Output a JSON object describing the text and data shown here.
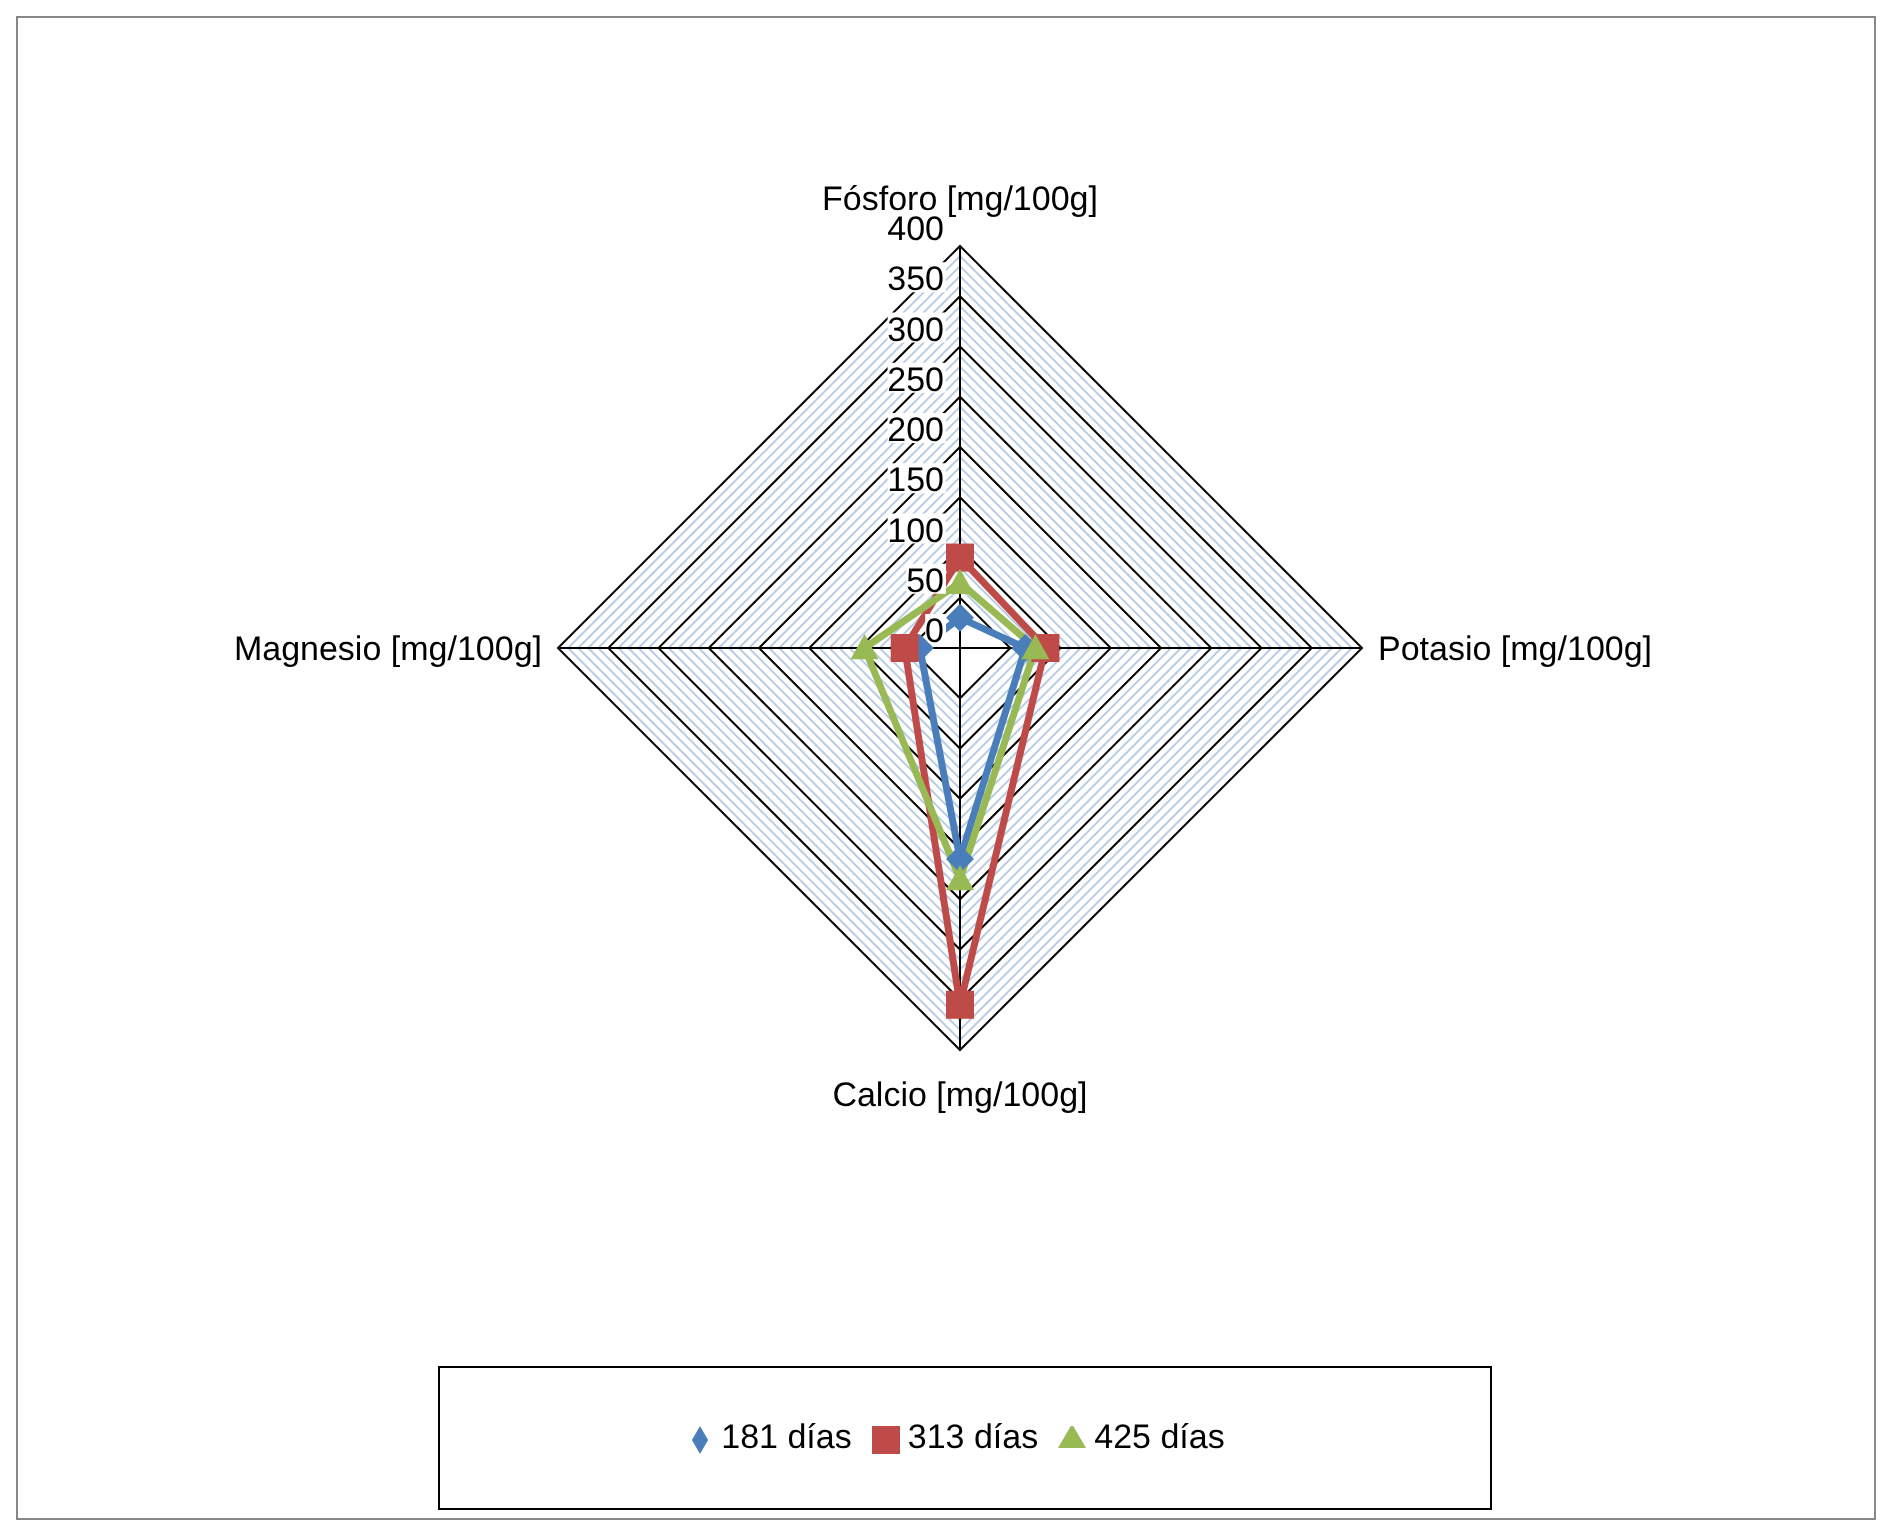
{
  "chart_data": {
    "type": "radar",
    "categories": [
      "Fósforo [mg/100g]",
      "Potasio [mg/100g]",
      "Calcio [mg/100g]",
      "Magnesio [mg/100g]"
    ],
    "ylim": [
      0,
      400
    ],
    "yticks": [
      0,
      50,
      100,
      150,
      200,
      250,
      300,
      350,
      400
    ],
    "grid": true,
    "legend": "bottom",
    "series": [
      {
        "name": "181 días",
        "color": "#4a7ebb",
        "marker": "diamond",
        "values": [
          30,
          65,
          210,
          40
        ]
      },
      {
        "name": "313 días",
        "color": "#be4b48",
        "marker": "square",
        "values": [
          90,
          85,
          355,
          55
        ]
      },
      {
        "name": "425 días",
        "color": "#98b954",
        "marker": "triangle",
        "values": [
          65,
          75,
          230,
          95
        ]
      }
    ]
  }
}
